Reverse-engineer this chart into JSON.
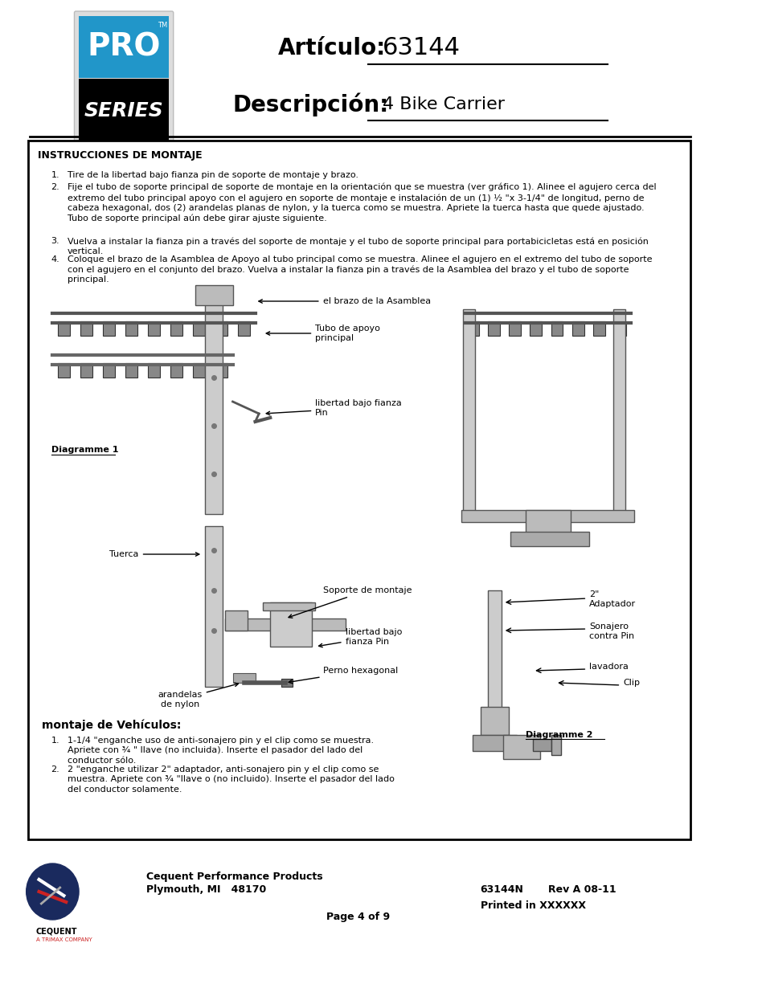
{
  "page_bg": "#ffffff",
  "header_article_label": "Artículo:",
  "header_article_value": "63144",
  "header_desc_label": "Descripción:",
  "header_desc_value": "4 Bike Carrier",
  "pro_bg_top": "#2196c9",
  "pro_bg_bottom": "#000000",
  "pro_text": "PRO",
  "series_text": "SERIES",
  "box_title": "INSTRUCCIONES DE MONTAJE",
  "instruction1": "Tire de la libertad bajo fianza pin de soporte de montaje y brazo.",
  "instruction2": "Fije el tubo de soporte principal de soporte de montaje en la orientación que se muestra (ver gráfico 1). Alinee el agujero cerca del\nextremo del tubo principal apoyo con el agujero en soporte de montaje e instalación de un (1) ½ \"x 3-1/4\" de longitud, perno de\ncabeza hexagonal, dos (2) arandelas planas de nylon, y la tuerca como se muestra. Apriete la tuerca hasta que quede ajustado.\nTubo de soporte principal aún debe girar ajuste siguiente.",
  "instruction3": "Vuelva a instalar la fianza pin a través del soporte de montaje y el tubo de soporte principal para portabicicletas está en posición\nvertical.",
  "instruction4": "Coloque el brazo de la Asamblea de Apoyo al tubo principal como se muestra. Alinee el agujero en el extremo del tubo de soporte\ncon el agujero en el conjunto del brazo. Vuelva a instalar la fianza pin a través de la Asamblea del brazo y el tubo de soporte\nprincipal.",
  "label_brazo": "el brazo de la Asamblea",
  "label_tubo": "Tubo de apoyo\nprincipal",
  "label_libertad1": "libertad bajo fianza\nPin",
  "label_diagramme1": "Diagramme 1",
  "label_soporte": "Soporte de montaje",
  "label_tuerca": "Tuerca",
  "label_libertad2": "libertad bajo\nfianza Pin",
  "label_perno": "Perno hexagonal",
  "label_arandelas": "arandelas\nde nylon",
  "label_2inch": "2\"\nAdaptador",
  "label_sonajero": "Sonajero\ncontra Pin",
  "label_lavadora": "lavadora",
  "label_clip": "Clip",
  "label_diagramme2": "Diagramme 2",
  "vehicle_title": "montaje de Vehículos:",
  "vehicle_inst1": "1-1/4 \"enganche uso de anti-sonajero pin y el clip como se muestra.\nApriete con ¾ \" llave (no incluida). Inserte el pasador del lado del\nconductor sólo.",
  "vehicle_inst2": "2 \"enganche utilizar 2\" adaptador, anti-sonajero pin y el clip como se\nmuestra. Apriete con ¾ \"llave o (no incluido). Inserte el pasador del lado\ndel conductor solamente.",
  "footer_company": "Cequent Performance Products",
  "footer_city": "Plymouth, MI   48170",
  "footer_page": "Page 4 of 9",
  "footer_part": "63144N",
  "footer_rev": "Rev A 08-11",
  "footer_printed": "Printed in XXXXXX"
}
